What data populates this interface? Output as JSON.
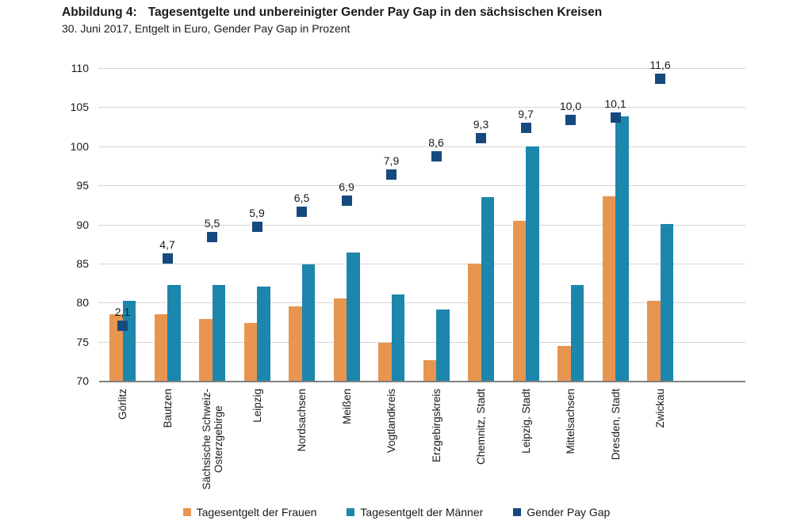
{
  "header": {
    "figure_label": "Abbildung 4:",
    "title": "Tagesentgelte und unbereinigter Gender Pay Gap in den sächsischen Kreisen",
    "subtitle": "30. Juni 2017, Entgelt in Euro, Gender Pay Gap in Prozent"
  },
  "chart_data": {
    "type": "bar",
    "title": "Tagesentgelte und unbereinigter Gender Pay Gap in den sächsischen Kreisen",
    "subtitle": "30. Juni 2017, Entgelt in Euro, Gender Pay Gap in Prozent",
    "categories": [
      "Görlitz",
      "Bautzen",
      "Sächsische Schweiz-\nOsterzgebirge",
      "Leipzig",
      "Nordsachsen",
      "Meißen",
      "Vogtlandkreis",
      "Erzgebirgskreis",
      "Chemnitz, Stadt",
      "Leipzig, Stadt",
      "Mittelsachsen",
      "Dresden, Stadt",
      "Zwickau"
    ],
    "series": [
      {
        "name": "Tagesentgelt der Frauen",
        "type": "bar",
        "color": "#E8954F",
        "unit": "Euro",
        "values": [
          78.5,
          78.5,
          77.9,
          77.4,
          79.5,
          80.5,
          74.9,
          72.6,
          85.0,
          90.5,
          74.5,
          93.6,
          80.2
        ]
      },
      {
        "name": "Tagesentgelt der Männer",
        "type": "bar",
        "color": "#1C86AD",
        "unit": "Euro",
        "values": [
          80.2,
          82.3,
          82.3,
          82.1,
          84.9,
          86.4,
          81.0,
          79.1,
          93.5,
          100.0,
          82.3,
          103.8,
          90.1
        ]
      },
      {
        "name": "Gender Pay Gap",
        "type": "point",
        "color": "#164A7E",
        "unit": "Prozent",
        "axis": "secondary",
        "values": [
          2.1,
          4.7,
          5.5,
          5.9,
          6.5,
          6.9,
          7.9,
          8.6,
          9.3,
          9.7,
          10.0,
          10.1,
          11.6
        ],
        "labels": [
          "2,1",
          "4,7",
          "5,5",
          "5,9",
          "6,5",
          "6,9",
          "7,9",
          "8,6",
          "9,3",
          "9,7",
          "10,0",
          "10,1",
          "11,6"
        ]
      }
    ],
    "primary_axis": {
      "min": 70,
      "max": 110,
      "step": 5,
      "ticks": [
        "110",
        "105",
        "100",
        "95",
        "90",
        "85",
        "80",
        "75",
        "70"
      ]
    },
    "secondary_axis": {
      "min": 0,
      "max": 12,
      "visible": false
    },
    "grid": "horizontal dotted",
    "legend_position": "bottom",
    "colors": {
      "grid": "#ADADAD",
      "axis_line": "#808080",
      "text": "#1A1A1A"
    }
  }
}
